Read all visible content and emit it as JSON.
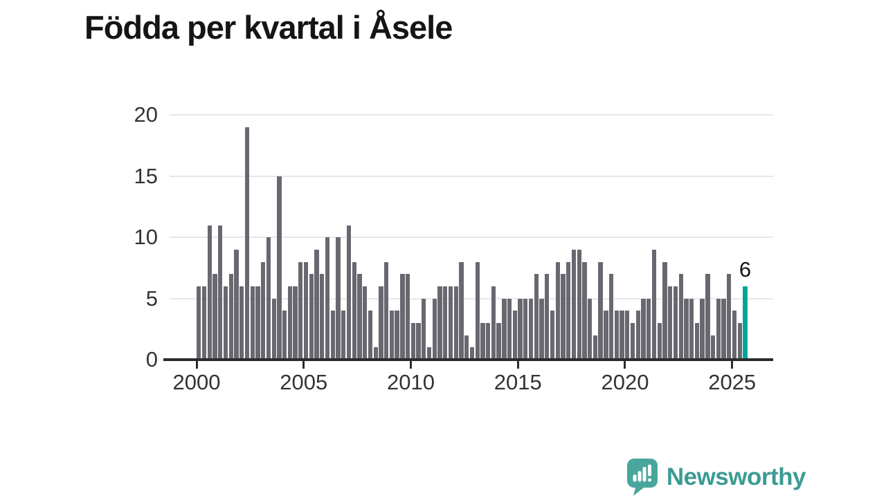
{
  "title": "Födda per kvartal i Åsele",
  "chart_data": {
    "type": "bar",
    "title": "Födda per kvartal i Åsele",
    "x_start": {
      "year": 2000,
      "quarter": 1
    },
    "x_end": {
      "year": 2025,
      "quarter": 3
    },
    "values": [
      6,
      6,
      11,
      7,
      11,
      6,
      7,
      9,
      6,
      19,
      6,
      6,
      8,
      10,
      5,
      15,
      4,
      6,
      6,
      8,
      8,
      7,
      9,
      7,
      10,
      4,
      10,
      4,
      11,
      8,
      7,
      6,
      4,
      1,
      6,
      8,
      4,
      4,
      7,
      7,
      3,
      3,
      5,
      1,
      5,
      6,
      6,
      6,
      6,
      8,
      2,
      1,
      8,
      3,
      3,
      6,
      3,
      5,
      5,
      4,
      5,
      5,
      5,
      7,
      5,
      7,
      4,
      8,
      7,
      8,
      9,
      9,
      8,
      5,
      2,
      8,
      4,
      7,
      4,
      4,
      4,
      3,
      4,
      5,
      5,
      9,
      3,
      8,
      6,
      6,
      7,
      5,
      5,
      3,
      5,
      7,
      2,
      5,
      5,
      7,
      4,
      3,
      6
    ],
    "x_tick_labels": [
      "2000",
      "2005",
      "2010",
      "2015",
      "2020",
      "2025"
    ],
    "x_tick_every_quarters": 20,
    "y_ticks": [
      "0",
      "5",
      "10",
      "15",
      "20"
    ],
    "ylim": [
      0,
      20
    ],
    "grid": "horizontal",
    "legend": "none",
    "highlight_last_bar": true,
    "last_value_label": "6"
  },
  "colors": {
    "bar": "#686870",
    "highlight": "#00a49c",
    "axis": "#2b2b2b",
    "grid": "#e7e7e7",
    "title_text": "#151515",
    "tick_text": "#333333",
    "logo_text": "#3a9b93",
    "logo_bubble": "#48a69d"
  },
  "logo": {
    "text": "Newsworthy",
    "icon": "speech-bubble-bar-chart-icon"
  }
}
